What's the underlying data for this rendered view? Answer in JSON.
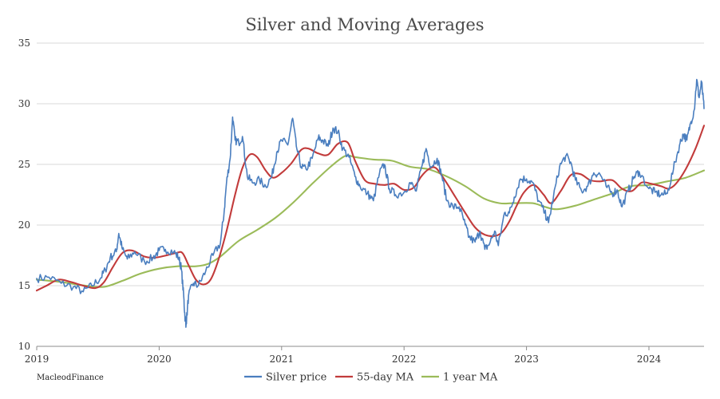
{
  "chart_data": {
    "type": "line",
    "title": "Silver and Moving Averages",
    "source_label": "MacleodFinance",
    "xlabel": "",
    "ylabel": "",
    "x_ticks": [
      "2019",
      "2020",
      "2021",
      "2022",
      "2023",
      "2024"
    ],
    "x_tick_values": [
      2019.0,
      2020.0,
      2021.0,
      2022.0,
      2023.0,
      2024.0
    ],
    "xlim": [
      2019.0,
      2024.45
    ],
    "ylim": [
      10,
      35
    ],
    "y_ticks": [
      "10",
      "15",
      "20",
      "25",
      "30",
      "35"
    ],
    "y_tick_values": [
      10,
      15,
      20,
      25,
      30,
      35
    ],
    "grid": "horizontal",
    "legend_position": "bottom",
    "series": [
      {
        "name": "Silver price",
        "color": "#4a7ebf",
        "width": 1.6,
        "noise": 0.35,
        "points": [
          [
            2019.0,
            15.6
          ],
          [
            2019.1,
            15.7
          ],
          [
            2019.2,
            15.2
          ],
          [
            2019.3,
            14.9
          ],
          [
            2019.38,
            14.5
          ],
          [
            2019.45,
            15.0
          ],
          [
            2019.52,
            15.6
          ],
          [
            2019.56,
            16.3
          ],
          [
            2019.6,
            17.3
          ],
          [
            2019.65,
            17.8
          ],
          [
            2019.67,
            19.3
          ],
          [
            2019.7,
            18.0
          ],
          [
            2019.74,
            17.2
          ],
          [
            2019.8,
            17.8
          ],
          [
            2019.88,
            17.0
          ],
          [
            2019.95,
            17.3
          ],
          [
            2020.0,
            17.9
          ],
          [
            2020.05,
            18.0
          ],
          [
            2020.12,
            17.8
          ],
          [
            2020.16,
            17.3
          ],
          [
            2020.18,
            16.5
          ],
          [
            2020.2,
            14.2
          ],
          [
            2020.21,
            12.5
          ],
          [
            2020.22,
            11.8
          ],
          [
            2020.24,
            14.2
          ],
          [
            2020.28,
            15.2
          ],
          [
            2020.32,
            15.0
          ],
          [
            2020.38,
            16.2
          ],
          [
            2020.44,
            17.5
          ],
          [
            2020.5,
            18.5
          ],
          [
            2020.53,
            21.0
          ],
          [
            2020.55,
            23.5
          ],
          [
            2020.58,
            25.5
          ],
          [
            2020.6,
            28.9
          ],
          [
            2020.62,
            27.0
          ],
          [
            2020.65,
            26.8
          ],
          [
            2020.68,
            27.3
          ],
          [
            2020.72,
            24.0
          ],
          [
            2020.76,
            23.5
          ],
          [
            2020.82,
            23.7
          ],
          [
            2020.87,
            23.2
          ],
          [
            2020.92,
            24.0
          ],
          [
            2020.96,
            26.0
          ],
          [
            2021.0,
            27.0
          ],
          [
            2021.05,
            26.6
          ],
          [
            2021.09,
            28.8
          ],
          [
            2021.12,
            26.5
          ],
          [
            2021.16,
            24.8
          ],
          [
            2021.2,
            24.6
          ],
          [
            2021.25,
            25.5
          ],
          [
            2021.3,
            27.2
          ],
          [
            2021.33,
            27.0
          ],
          [
            2021.38,
            26.5
          ],
          [
            2021.42,
            28.0
          ],
          [
            2021.46,
            27.7
          ],
          [
            2021.5,
            26.3
          ],
          [
            2021.55,
            25.6
          ],
          [
            2021.6,
            24.0
          ],
          [
            2021.64,
            23.2
          ],
          [
            2021.7,
            22.6
          ],
          [
            2021.75,
            22.0
          ],
          [
            2021.8,
            24.3
          ],
          [
            2021.84,
            25.0
          ],
          [
            2021.88,
            23.0
          ],
          [
            2021.93,
            22.5
          ],
          [
            2022.0,
            22.7
          ],
          [
            2022.05,
            23.5
          ],
          [
            2022.1,
            22.8
          ],
          [
            2022.15,
            25.0
          ],
          [
            2022.18,
            26.3
          ],
          [
            2022.22,
            24.8
          ],
          [
            2022.27,
            25.5
          ],
          [
            2022.31,
            24.0
          ],
          [
            2022.35,
            22.0
          ],
          [
            2022.4,
            21.5
          ],
          [
            2022.45,
            21.5
          ],
          [
            2022.5,
            20.0
          ],
          [
            2022.53,
            19.0
          ],
          [
            2022.58,
            18.6
          ],
          [
            2022.62,
            19.5
          ],
          [
            2022.66,
            18.0
          ],
          [
            2022.7,
            18.5
          ],
          [
            2022.74,
            19.5
          ],
          [
            2022.77,
            18.3
          ],
          [
            2022.82,
            21.0
          ],
          [
            2022.86,
            21.0
          ],
          [
            2022.9,
            22.3
          ],
          [
            2022.95,
            23.8
          ],
          [
            2023.0,
            23.8
          ],
          [
            2023.05,
            23.5
          ],
          [
            2023.1,
            22.0
          ],
          [
            2023.15,
            21.0
          ],
          [
            2023.18,
            20.2
          ],
          [
            2023.22,
            22.3
          ],
          [
            2023.27,
            24.8
          ],
          [
            2023.32,
            25.7
          ],
          [
            2023.36,
            25.2
          ],
          [
            2023.4,
            23.7
          ],
          [
            2023.45,
            22.8
          ],
          [
            2023.5,
            23.2
          ],
          [
            2023.55,
            24.3
          ],
          [
            2023.6,
            24.2
          ],
          [
            2023.65,
            23.2
          ],
          [
            2023.7,
            22.6
          ],
          [
            2023.74,
            22.9
          ],
          [
            2023.78,
            21.5
          ],
          [
            2023.83,
            22.8
          ],
          [
            2023.88,
            24.0
          ],
          [
            2023.92,
            24.4
          ],
          [
            2024.0,
            23.0
          ],
          [
            2024.05,
            22.7
          ],
          [
            2024.1,
            22.5
          ],
          [
            2024.15,
            22.6
          ],
          [
            2024.2,
            24.6
          ],
          [
            2024.25,
            26.6
          ],
          [
            2024.28,
            27.5
          ],
          [
            2024.31,
            27.0
          ],
          [
            2024.34,
            28.4
          ],
          [
            2024.37,
            29.5
          ],
          [
            2024.39,
            32.0
          ],
          [
            2024.41,
            30.5
          ],
          [
            2024.43,
            31.8
          ],
          [
            2024.45,
            29.6
          ]
        ]
      },
      {
        "name": "55-day MA",
        "color": "#c23b3b",
        "width": 2.1,
        "noise": 0,
        "points": [
          [
            2019.0,
            14.6
          ],
          [
            2019.08,
            15.0
          ],
          [
            2019.18,
            15.5
          ],
          [
            2019.28,
            15.3
          ],
          [
            2019.38,
            15.0
          ],
          [
            2019.48,
            14.8
          ],
          [
            2019.55,
            15.3
          ],
          [
            2019.62,
            16.5
          ],
          [
            2019.7,
            17.7
          ],
          [
            2019.78,
            17.9
          ],
          [
            2019.88,
            17.4
          ],
          [
            2019.96,
            17.3
          ],
          [
            2020.06,
            17.5
          ],
          [
            2020.14,
            17.7
          ],
          [
            2020.19,
            17.7
          ],
          [
            2020.24,
            16.7
          ],
          [
            2020.3,
            15.5
          ],
          [
            2020.36,
            15.1
          ],
          [
            2020.42,
            15.5
          ],
          [
            2020.48,
            17.0
          ],
          [
            2020.55,
            19.5
          ],
          [
            2020.62,
            22.5
          ],
          [
            2020.68,
            24.7
          ],
          [
            2020.74,
            25.8
          ],
          [
            2020.8,
            25.6
          ],
          [
            2020.87,
            24.5
          ],
          [
            2020.93,
            23.9
          ],
          [
            2021.0,
            24.3
          ],
          [
            2021.08,
            25.1
          ],
          [
            2021.16,
            26.2
          ],
          [
            2021.22,
            26.3
          ],
          [
            2021.3,
            25.9
          ],
          [
            2021.38,
            25.8
          ],
          [
            2021.46,
            26.7
          ],
          [
            2021.54,
            26.8
          ],
          [
            2021.6,
            25.3
          ],
          [
            2021.68,
            23.7
          ],
          [
            2021.76,
            23.4
          ],
          [
            2021.84,
            23.3
          ],
          [
            2021.92,
            23.4
          ],
          [
            2022.0,
            22.9
          ],
          [
            2022.08,
            23.1
          ],
          [
            2022.14,
            24.0
          ],
          [
            2022.2,
            24.6
          ],
          [
            2022.26,
            24.7
          ],
          [
            2022.34,
            23.6
          ],
          [
            2022.42,
            22.3
          ],
          [
            2022.5,
            21.0
          ],
          [
            2022.58,
            19.8
          ],
          [
            2022.66,
            19.2
          ],
          [
            2022.74,
            19.1
          ],
          [
            2022.8,
            19.4
          ],
          [
            2022.86,
            20.3
          ],
          [
            2022.92,
            21.6
          ],
          [
            2022.98,
            22.7
          ],
          [
            2023.06,
            23.3
          ],
          [
            2023.14,
            22.5
          ],
          [
            2023.2,
            21.8
          ],
          [
            2023.28,
            22.8
          ],
          [
            2023.36,
            24.1
          ],
          [
            2023.44,
            24.2
          ],
          [
            2023.52,
            23.7
          ],
          [
            2023.6,
            23.6
          ],
          [
            2023.7,
            23.7
          ],
          [
            2023.78,
            23.0
          ],
          [
            2023.86,
            22.8
          ],
          [
            2023.94,
            23.5
          ],
          [
            2024.02,
            23.4
          ],
          [
            2024.1,
            23.2
          ],
          [
            2024.16,
            23.0
          ],
          [
            2024.22,
            23.4
          ],
          [
            2024.3,
            24.6
          ],
          [
            2024.38,
            26.3
          ],
          [
            2024.45,
            28.2
          ]
        ]
      },
      {
        "name": "1 year MA",
        "color": "#9bbb59",
        "width": 2.1,
        "noise": 0,
        "points": [
          [
            2019.0,
            15.5
          ],
          [
            2019.2,
            15.3
          ],
          [
            2019.4,
            15.0
          ],
          [
            2019.55,
            14.9
          ],
          [
            2019.7,
            15.4
          ],
          [
            2019.85,
            16.0
          ],
          [
            2020.0,
            16.4
          ],
          [
            2020.15,
            16.6
          ],
          [
            2020.3,
            16.6
          ],
          [
            2020.4,
            16.8
          ],
          [
            2020.5,
            17.4
          ],
          [
            2020.65,
            18.7
          ],
          [
            2020.8,
            19.6
          ],
          [
            2020.95,
            20.6
          ],
          [
            2021.1,
            21.9
          ],
          [
            2021.25,
            23.4
          ],
          [
            2021.4,
            24.8
          ],
          [
            2021.52,
            25.7
          ],
          [
            2021.6,
            25.6
          ],
          [
            2021.75,
            25.4
          ],
          [
            2021.9,
            25.3
          ],
          [
            2022.05,
            24.8
          ],
          [
            2022.2,
            24.6
          ],
          [
            2022.35,
            24.0
          ],
          [
            2022.5,
            23.2
          ],
          [
            2022.65,
            22.2
          ],
          [
            2022.78,
            21.8
          ],
          [
            2022.9,
            21.8
          ],
          [
            2023.05,
            21.8
          ],
          [
            2023.15,
            21.5
          ],
          [
            2023.25,
            21.3
          ],
          [
            2023.4,
            21.6
          ],
          [
            2023.55,
            22.1
          ],
          [
            2023.7,
            22.6
          ],
          [
            2023.85,
            23.2
          ],
          [
            2024.0,
            23.3
          ],
          [
            2024.15,
            23.6
          ],
          [
            2024.3,
            23.9
          ],
          [
            2024.45,
            24.5
          ]
        ]
      }
    ]
  }
}
